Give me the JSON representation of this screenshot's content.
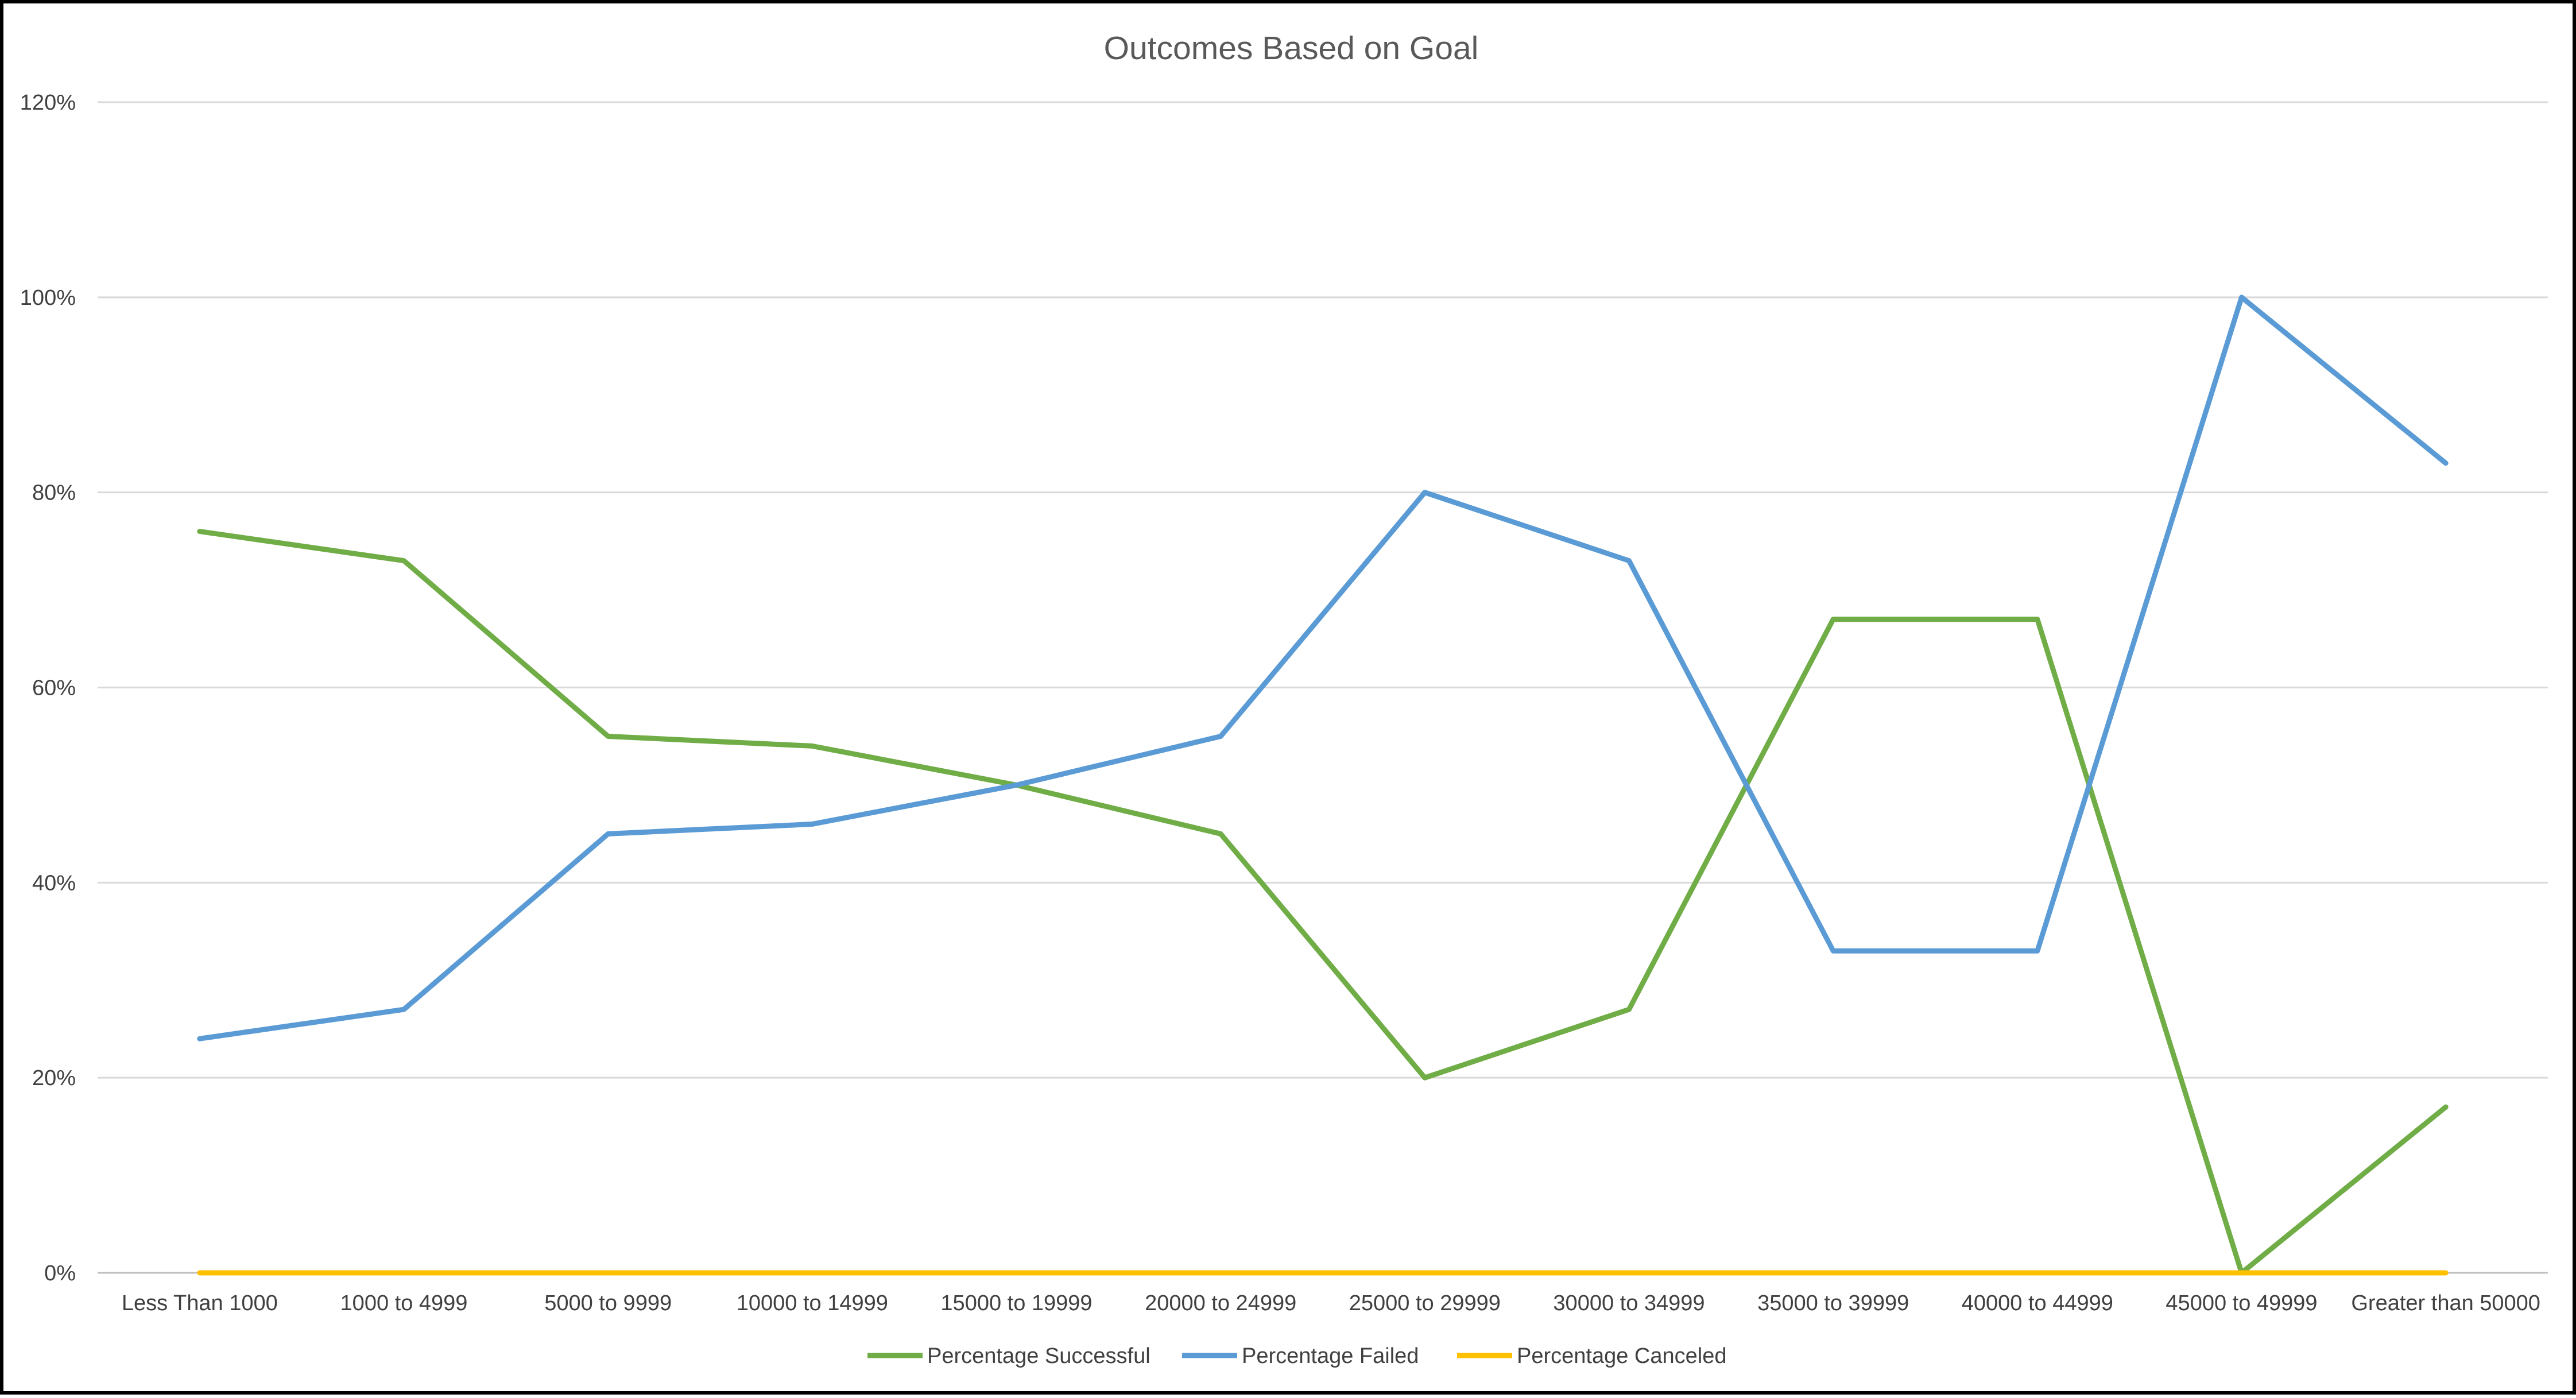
{
  "chart_data": {
    "type": "line",
    "title": "Outcomes Based on Goal",
    "xlabel": "",
    "ylabel": "",
    "categories": [
      "Less Than 1000",
      "1000 to 4999",
      "5000 to 9999",
      "10000 to 14999",
      "15000 to 19999",
      "20000 to 24999",
      "25000 to 29999",
      "30000 to 34999",
      "35000 to 39999",
      "40000 to 44999",
      "45000 to 49999",
      "Greater than 50000"
    ],
    "y_ticks": [
      "0%",
      "20%",
      "40%",
      "60%",
      "80%",
      "100%",
      "120%"
    ],
    "ylim": [
      0,
      120
    ],
    "y_unit": "%",
    "grid": "horizontal",
    "legend_position": "bottom",
    "series": [
      {
        "name": "Percentage Successful",
        "color": "#70AD47",
        "values": [
          76,
          73,
          55,
          54,
          50,
          45,
          20,
          27,
          67,
          67,
          0,
          17
        ]
      },
      {
        "name": "Percentage Failed",
        "color": "#5B9BD5",
        "values": [
          24,
          27,
          45,
          46,
          50,
          55,
          80,
          73,
          33,
          33,
          100,
          83
        ]
      },
      {
        "name": "Percentage Canceled",
        "color": "#FFC000",
        "values": [
          0,
          0,
          0,
          0,
          0,
          0,
          0,
          0,
          0,
          0,
          0,
          0
        ]
      }
    ]
  }
}
